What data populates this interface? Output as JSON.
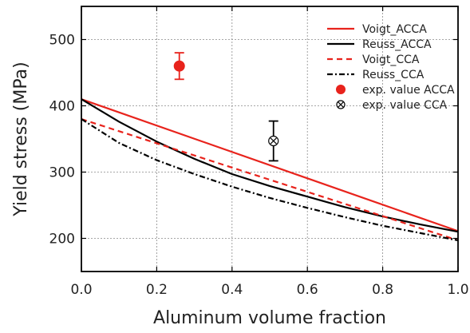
{
  "chart_data": {
    "type": "line",
    "xlabel": "Aluminum volume fraction",
    "ylabel": "Yield stress (MPa)",
    "xlim": [
      0.0,
      1.0
    ],
    "ylim": [
      150,
      550
    ],
    "xticks": [
      "0.0",
      "0.2",
      "0.4",
      "0.6",
      "0.8",
      "1.0"
    ],
    "yticks": [
      "200",
      "300",
      "400",
      "500"
    ],
    "grid": true,
    "legend_position": "top-right",
    "series": [
      {
        "name": "Voigt_ACCA",
        "color": "#e8231c",
        "style": "solid",
        "x": [
          0.0,
          1.0
        ],
        "y": [
          410,
          211
        ]
      },
      {
        "name": "Reuss_ACCA",
        "color": "#000000",
        "style": "solid",
        "x": [
          0.0,
          0.1,
          0.2,
          0.3,
          0.4,
          0.5,
          0.6,
          0.7,
          0.8,
          0.9,
          1.0
        ],
        "y": [
          410,
          376,
          346,
          320,
          297,
          279,
          263,
          247,
          233,
          221,
          210
        ]
      },
      {
        "name": "Voigt_CCA",
        "color": "#e8231c",
        "style": "dashed",
        "x": [
          0.0,
          1.0
        ],
        "y": [
          380,
          197
        ]
      },
      {
        "name": "Reuss_CCA",
        "color": "#000000",
        "style": "dashdot",
        "x": [
          0.0,
          0.1,
          0.2,
          0.3,
          0.4,
          0.5,
          0.6,
          0.7,
          0.8,
          0.9,
          1.0
        ],
        "y": [
          380,
          344,
          318,
          297,
          278,
          261,
          246,
          232,
          219,
          208,
          197
        ]
      }
    ],
    "points": [
      {
        "name": "exp. value ACCA",
        "color": "#e8231c",
        "marker": "filled-circle",
        "x": 0.26,
        "y": 460,
        "yerr": 20
      },
      {
        "name": "exp. value CCA",
        "color": "#000000",
        "marker": "circled-x",
        "x": 0.51,
        "y": 347,
        "yerr": 30
      }
    ]
  }
}
